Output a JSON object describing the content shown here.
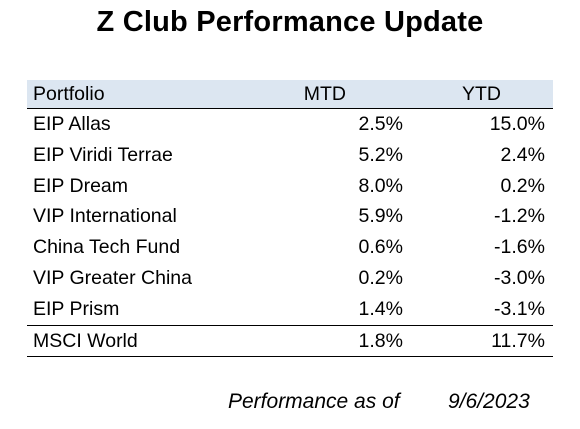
{
  "title": "Z Club Performance Update",
  "table": {
    "headers": {
      "portfolio": "Portfolio",
      "mtd": "MTD",
      "ytd": "YTD"
    },
    "rows": [
      {
        "name": "EIP Allas",
        "mtd": "2.5%",
        "ytd": "15.0%"
      },
      {
        "name": "EIP Viridi Terrae",
        "mtd": "5.2%",
        "ytd": "2.4%"
      },
      {
        "name": "EIP Dream",
        "mtd": "8.0%",
        "ytd": "0.2%"
      },
      {
        "name": "VIP International",
        "mtd": "5.9%",
        "ytd": "-1.2%"
      },
      {
        "name": "China Tech Fund",
        "mtd": "0.6%",
        "ytd": "-1.6%"
      },
      {
        "name": "VIP Greater China",
        "mtd": "0.2%",
        "ytd": "-3.0%"
      },
      {
        "name": "EIP Prism",
        "mtd": "1.4%",
        "ytd": "-3.1%"
      }
    ],
    "benchmark": {
      "name": "MSCI World",
      "mtd": "1.8%",
      "ytd": "11.7%"
    },
    "header_color": "#dce6f1"
  },
  "footer": {
    "label": "Performance as of",
    "date": "9/6/2023"
  }
}
